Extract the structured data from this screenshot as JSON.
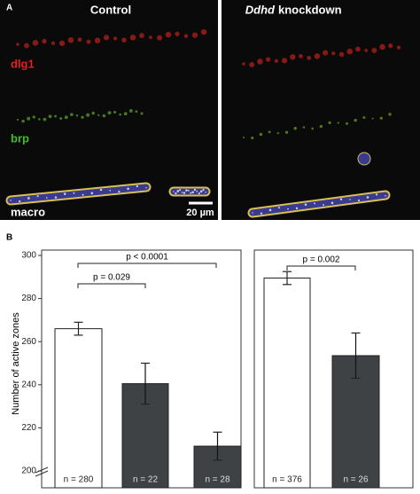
{
  "panel_a": {
    "label": "A",
    "left_title": "Control",
    "right_title_italic": "Ddhd",
    "right_title": "knockdown",
    "channels": [
      "dlg1",
      "brp",
      "macro"
    ],
    "scale_bar": "20 µm"
  },
  "chart_data": {
    "type": "bar",
    "panel_label": "B",
    "ylabel": "Number of active zones",
    "values": [
      266,
      240.5,
      211.5,
      289.5,
      253.5
    ],
    "errors": [
      3,
      9.5,
      6.5,
      3,
      10.5
    ],
    "n_labels": [
      "n = 280",
      "n = 22",
      "n = 28",
      "n = 376",
      "n = 26"
    ],
    "colors": [
      "#ffffff",
      "#3f4244",
      "#3f4244",
      "#ffffff",
      "#3f4244"
    ],
    "annotations": [
      "p < 0.0001",
      "p = 0.029",
      "p = 0.002"
    ],
    "ylim": [
      200,
      300
    ],
    "yticks": [
      200,
      220,
      240,
      260,
      280,
      300
    ]
  }
}
